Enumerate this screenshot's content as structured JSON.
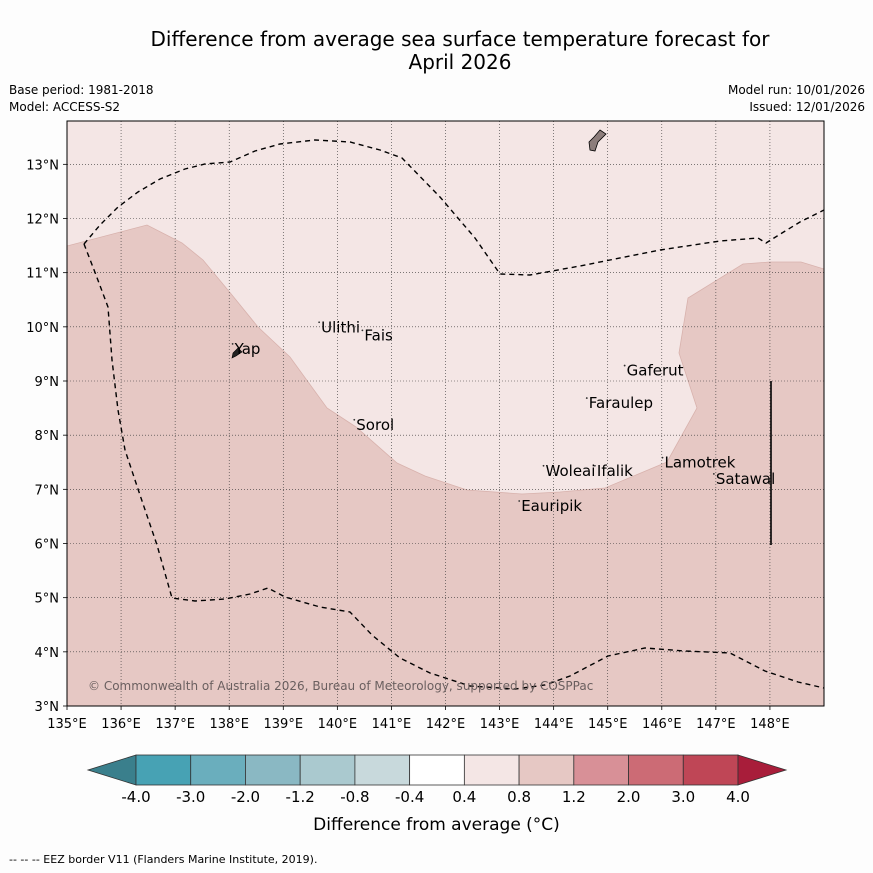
{
  "title": {
    "line1": "Difference from average sea surface temperature forecast for",
    "line2": "April 2026"
  },
  "meta": {
    "base_period": "Base period: 1981-2018",
    "model": "Model: ACCESS-S2",
    "model_run": "Model run: 10/01/2026",
    "issued": "Issued: 12/01/2026"
  },
  "map": {
    "lon_ticks": [
      135,
      136,
      137,
      138,
      139,
      140,
      141,
      142,
      143,
      144,
      145,
      146,
      147,
      148
    ],
    "lon_labels": [
      "135°E",
      "136°E",
      "137°E",
      "138°E",
      "139°E",
      "140°E",
      "141°E",
      "142°E",
      "143°E",
      "144°E",
      "145°E",
      "146°E",
      "147°E",
      "148°E"
    ],
    "lat_ticks": [
      3,
      4,
      5,
      6,
      7,
      8,
      9,
      10,
      11,
      12,
      13
    ],
    "lat_labels": [
      "3°N",
      "4°N",
      "5°N",
      "6°N",
      "7°N",
      "8°N",
      "9°N",
      "10°N",
      "11°N",
      "12°N",
      "13°N"
    ],
    "lon_range": [
      135,
      149
    ],
    "lat_range": [
      3,
      13.8
    ],
    "places": [
      {
        "name": "Yap",
        "lon": 138.1,
        "lat": 9.5
      },
      {
        "name": "Ulithi",
        "lon": 139.7,
        "lat": 9.9
      },
      {
        "name": "Fais",
        "lon": 140.5,
        "lat": 9.75
      },
      {
        "name": "Sorol",
        "lon": 140.35,
        "lat": 8.1
      },
      {
        "name": "Gaferut",
        "lon": 145.35,
        "lat": 9.1
      },
      {
        "name": "Faraulep",
        "lon": 144.65,
        "lat": 8.5
      },
      {
        "name": "Woleai",
        "lon": 143.85,
        "lat": 7.25
      },
      {
        "name": "Ifalik",
        "lon": 144.8,
        "lat": 7.25
      },
      {
        "name": "Lamotrek",
        "lon": 146.05,
        "lat": 7.4
      },
      {
        "name": "Satawal",
        "lon": 147.0,
        "lat": 7.1
      },
      {
        "name": "Eauripik",
        "lon": 143.4,
        "lat": 6.6
      }
    ],
    "copyright": "© Commonwealth of Australia 2026, Bureau of Meteorology, supported by COSPPac",
    "colors": {
      "band_04_08": "#f4e6e5",
      "band_08_12": "#e6c8c4",
      "land": "#8c7d7b"
    }
  },
  "colorbar": {
    "labels": [
      "-4.0",
      "-3.0",
      "-2.0",
      "-1.2",
      "-0.8",
      "-0.4",
      "0.4",
      "0.8",
      "1.2",
      "2.0",
      "3.0",
      "4.0"
    ],
    "colors": [
      "#3a7f8c",
      "#47a2b4",
      "#6aaebd",
      "#8ab8c3",
      "#aac9cf",
      "#c8d9dc",
      "#ffffff",
      "#f4e6e5",
      "#e6c8c4",
      "#d89097",
      "#cc6b75",
      "#bf4656",
      "#a81d3a"
    ],
    "title": "Difference from average (°C)"
  },
  "footnote": "--  --  -- EEZ border V11 (Flanders Marine Institute, 2019)."
}
